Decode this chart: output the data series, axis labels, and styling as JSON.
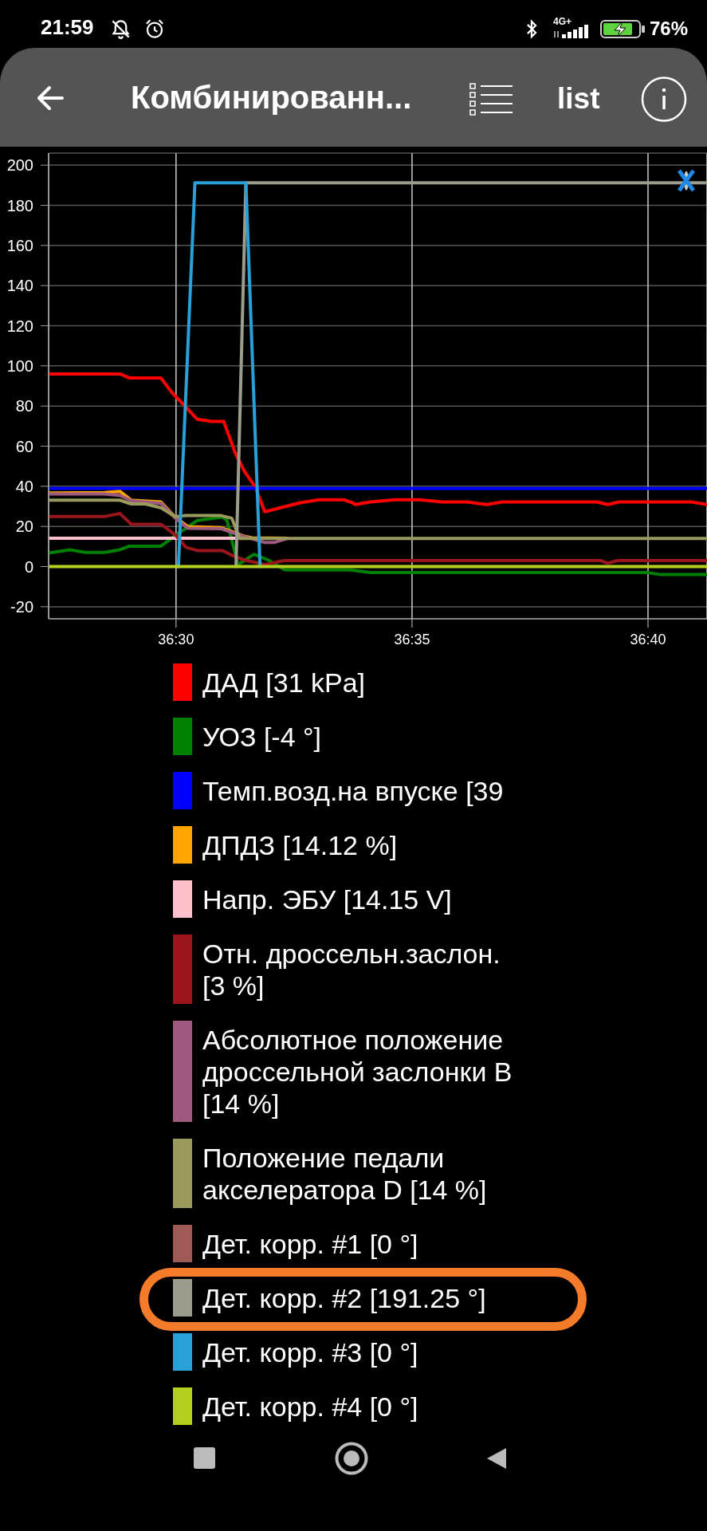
{
  "chart_data": {
    "type": "line",
    "title": "Комбинированн...",
    "annotations": [
      "21:59",
      "4G+",
      "76%",
      "list"
    ],
    "xlim": [
      2187.3,
      2201.25
    ],
    "xticks": [
      {
        "value": 2190,
        "label": "36:30"
      },
      {
        "value": 2195,
        "label": "36:35"
      },
      {
        "value": 2200,
        "label": "36:40"
      }
    ],
    "ylim": [
      -26,
      206
    ],
    "yticks": [
      -20,
      0,
      20,
      40,
      60,
      80,
      100,
      120,
      140,
      160,
      180,
      200
    ],
    "grid": true,
    "legend": "bottom",
    "line_style": "solid",
    "series": [
      {
        "name": "ДАД [31 kPa]",
        "color": "#ff0000",
        "x": [
          2187.3,
          2188.81,
          2189.01,
          2189.68,
          2189.91,
          2190.15,
          2190.45,
          2190.75,
          2191.01,
          2191.25,
          2191.45,
          2191.68,
          2191.88,
          2192.21,
          2192.61,
          2193.02,
          2193.55,
          2193.75,
          2193.8,
          2194.11,
          2194.64,
          2195.17,
          2195.64,
          2196.17,
          2196.58,
          2196.91,
          2198.92,
          2199.15,
          2199.38,
          2200.92,
          2201.25
        ],
        "values": [
          96,
          96,
          94,
          94,
          86.8,
          80.9,
          73.4,
          72.3,
          72.3,
          56.9,
          47.4,
          39.6,
          27.3,
          29.3,
          31.7,
          33.3,
          33.3,
          31.7,
          30.9,
          32.2,
          33.3,
          33.3,
          32.2,
          32.2,
          30.9,
          32.2,
          32.2,
          30.9,
          32.2,
          32.2,
          30.9
        ]
      },
      {
        "name": "УОЗ [-4 °]",
        "color": "#008000",
        "x": [
          2187.3,
          2187.75,
          2188.08,
          2188.48,
          2188.81,
          2189.01,
          2189.68,
          2190.01,
          2190.45,
          2190.98,
          2191.08,
          2191.31,
          2191.65,
          2191.95,
          2192.31,
          2193.7,
          2194.11,
          2200,
          2200.27,
          2201.25
        ],
        "values": [
          6.8,
          8.4,
          7.1,
          7.1,
          8.4,
          10.2,
          10.2,
          15.9,
          23,
          24.6,
          23,
          0.9,
          6.1,
          3.3,
          -1.7,
          -1.7,
          -3,
          -3,
          -4,
          -4
        ]
      },
      {
        "name": "Темп.возд.на впуске [39",
        "color": "#0000ff",
        "x": [
          2187.3,
          2201.25
        ],
        "values": [
          39,
          39
        ]
      },
      {
        "name": "ДПДЗ [14.12 %]",
        "color": "#ffa500",
        "x": [
          2187.3,
          2188.48,
          2188.81,
          2189.05,
          2189.68,
          2189.98,
          2190.25,
          2190.95,
          2191.21,
          2191.45,
          2191.61,
          2192.35
        ],
        "values": [
          36.7,
          36.9,
          37.5,
          33.1,
          32.2,
          24.6,
          19.9,
          19.4,
          17.2,
          15.1,
          14.3,
          14.1
        ]
      },
      {
        "name": "Напр. ЭБУ [14.15 V]",
        "color": "#ffc0cb",
        "x": [
          2187.3,
          2191.3
        ],
        "values": [
          14.15,
          14.15
        ]
      },
      {
        "name": "Отн. дроссельн.заслон. [3 %]",
        "color": "#9b161c",
        "x": [
          2187.3,
          2188.48,
          2188.81,
          2189.05,
          2189.68,
          2189.98,
          2190.21,
          2190.45,
          2190.98,
          2191.25,
          2191.45,
          2191.75,
          2191.88,
          2192.28,
          2199,
          2199.15,
          2199.35,
          2201.25
        ],
        "values": [
          24.9,
          24.9,
          26.5,
          21.1,
          21.1,
          15.9,
          9.6,
          8,
          8,
          4.9,
          3.3,
          1.7,
          0.9,
          3,
          3,
          1.7,
          3,
          3
        ]
      },
      {
        "name": "Абсолютное положение дроссельной заслонки B [14 %]",
        "color": "#9e5a7e",
        "x": [
          2187.3,
          2188.48,
          2188.81,
          2189.05,
          2189.68,
          2189.98,
          2190.25,
          2190.95,
          2191.21,
          2191.45,
          2191.88,
          2192.08,
          2192.35
        ],
        "values": [
          36.2,
          36.2,
          35.5,
          32.8,
          31.5,
          24.3,
          19.1,
          18.9,
          16.8,
          15,
          12,
          12,
          14
        ]
      },
      {
        "name": "Положение педали акселератора D [14 %]",
        "color": "#9a9a5c",
        "x": [
          2187.3,
          2188.81,
          2189.05,
          2189.35,
          2189.68,
          2189.98,
          2190.21,
          2190.95,
          2191.18,
          2191.35,
          2201.25
        ],
        "values": [
          33.1,
          33.1,
          31.2,
          31.2,
          29.3,
          24.9,
          25.4,
          25.4,
          24.1,
          14,
          14
        ]
      },
      {
        "name": "Дет. корр. #1 [0 °]",
        "color": "#a05a55"
      },
      {
        "name": "Дет. корр. #2 [191.25 °]",
        "color": "#9c9c8c",
        "x": [
          2191.27,
          2191.48,
          2201.25
        ],
        "values": [
          0,
          191.25,
          191.25
        ]
      },
      {
        "name": "Дет. корр. #3 [0 °]",
        "color": "#29a0d8",
        "x": [
          2190.05,
          2190.4,
          2191.48,
          2191.78
        ],
        "values": [
          0,
          191.25,
          191.25,
          0
        ]
      },
      {
        "name": "Дет. корр. #4 [0 °]",
        "color": "#b5cf1f",
        "x": [
          2187.3,
          2201.25
        ],
        "values": [
          0,
          0
        ]
      }
    ]
  }
}
